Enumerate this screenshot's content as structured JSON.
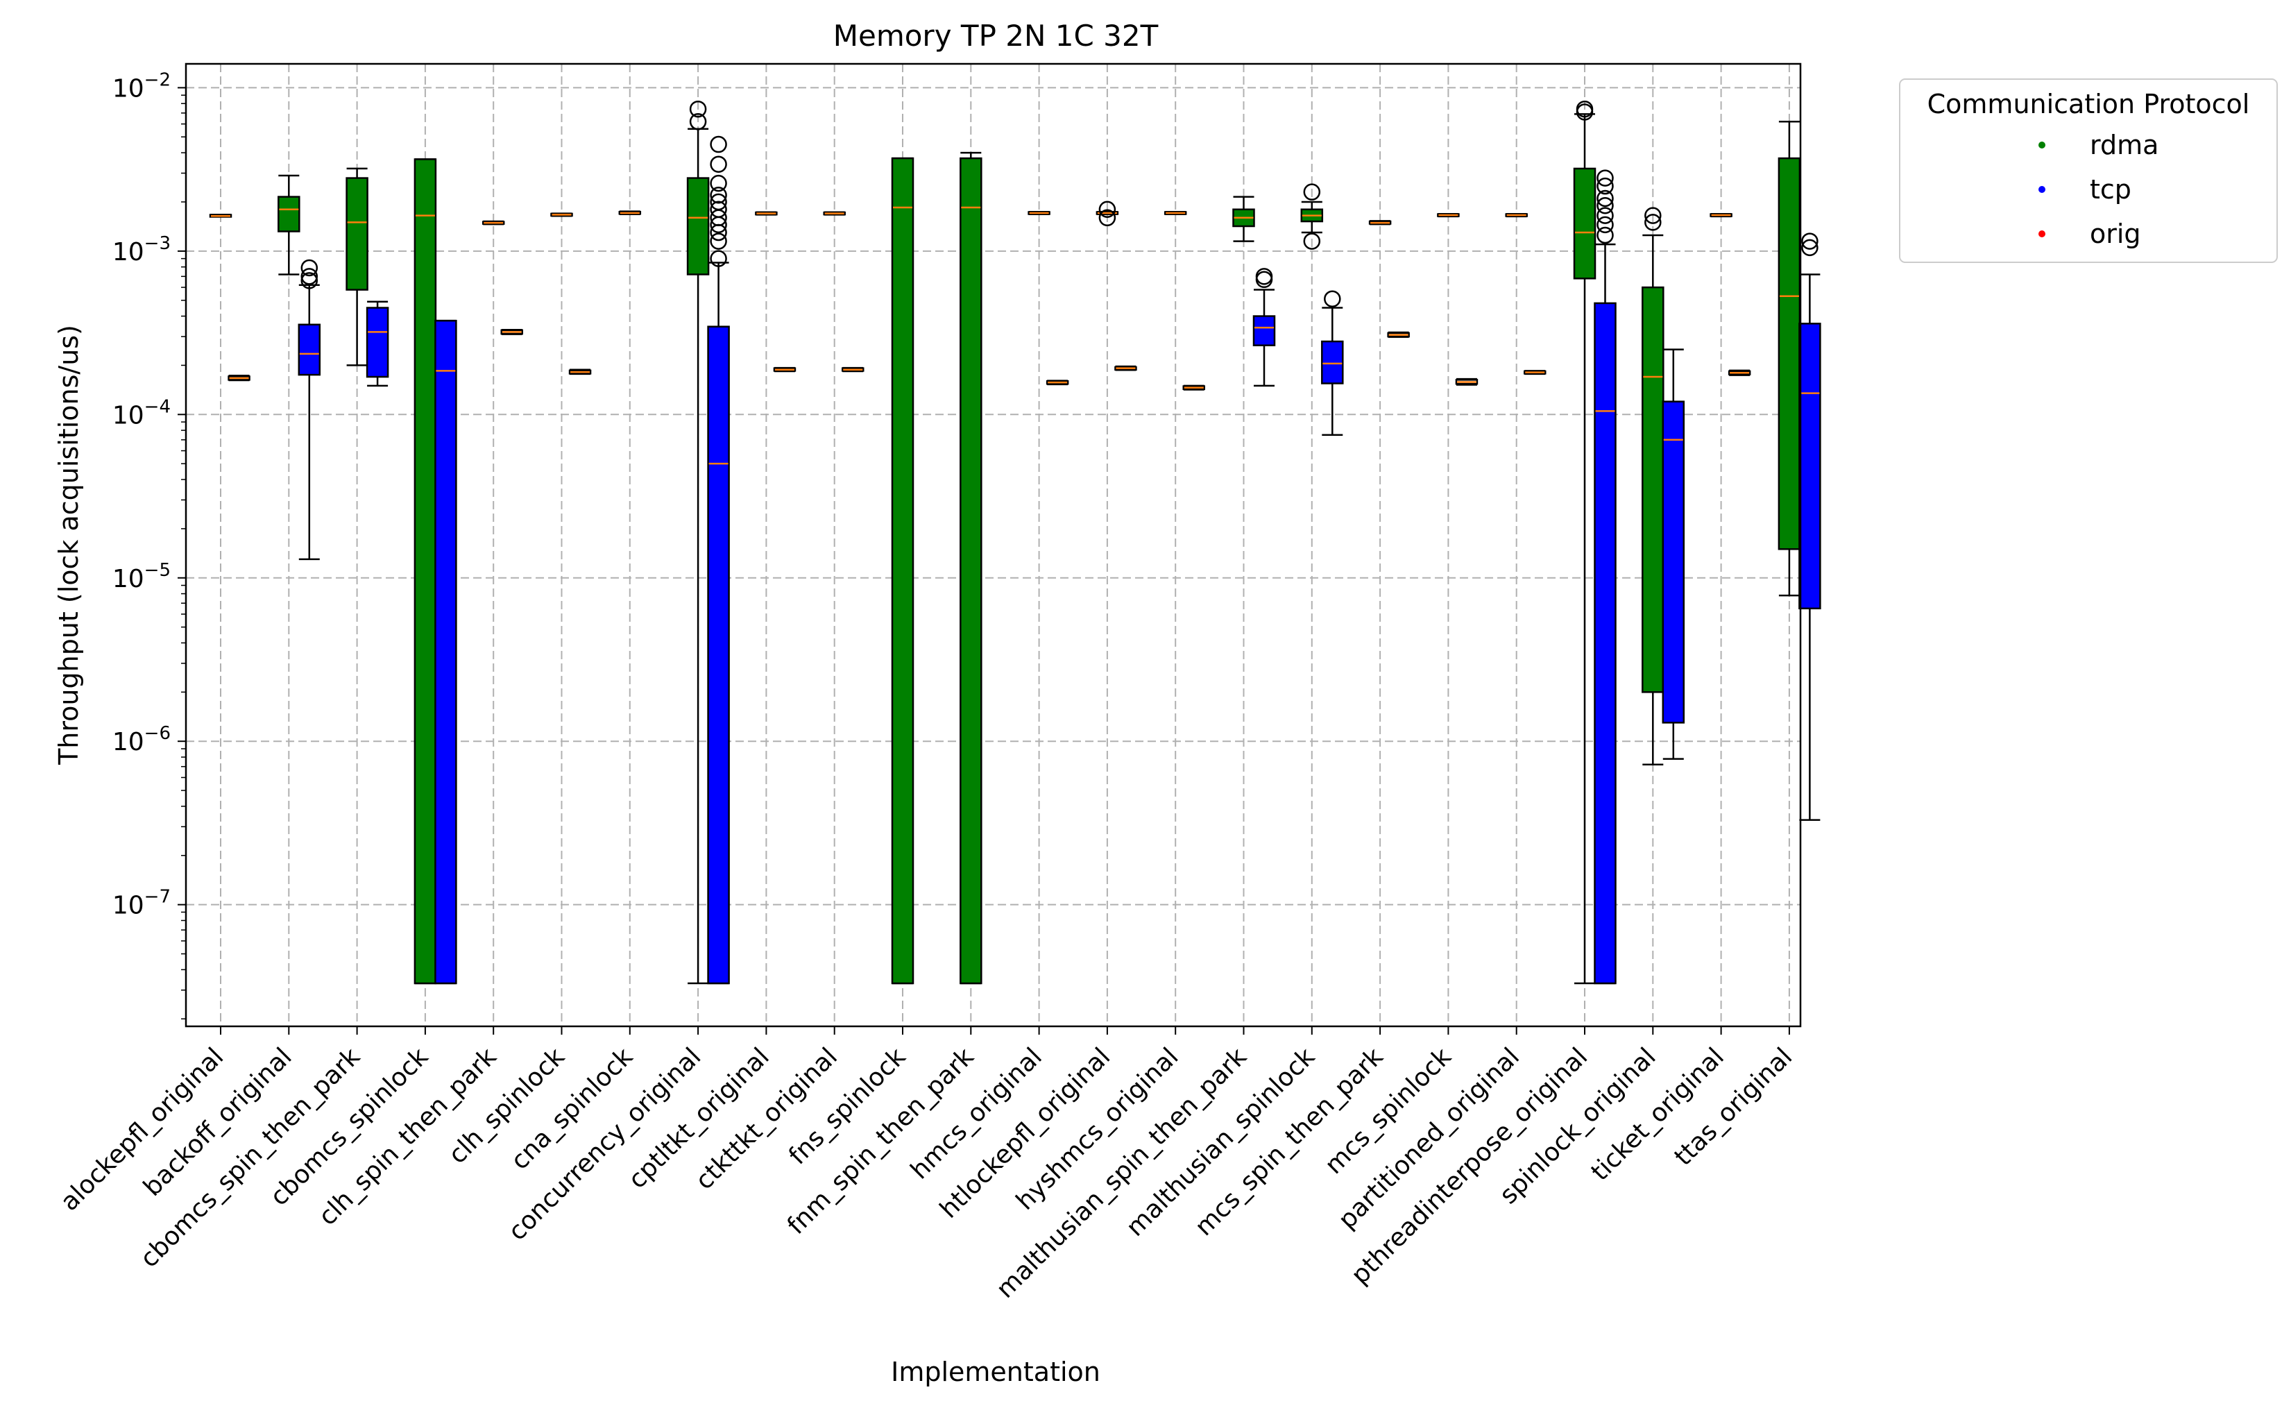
{
  "chart_data": {
    "type": "box",
    "title": "Memory TP 2N 1C 32T",
    "xlabel": "Implementation",
    "ylabel": "Throughput (lock acquisitions/us)",
    "yscale": "log",
    "ylim": [
      1.8e-08,
      0.014
    ],
    "yticks": [
      {
        "value": 1e-07,
        "base": "10",
        "exp": "−7"
      },
      {
        "value": 1e-06,
        "base": "10",
        "exp": "−6"
      },
      {
        "value": 1e-05,
        "base": "10",
        "exp": "−5"
      },
      {
        "value": 0.0001,
        "base": "10",
        "exp": "−4"
      },
      {
        "value": 0.001,
        "base": "10",
        "exp": "−3"
      },
      {
        "value": 0.01,
        "base": "10",
        "exp": "−2"
      }
    ],
    "grid": true,
    "legend": {
      "title": "Communication Protocol",
      "placement": "outside-right",
      "entries": [
        {
          "label": "rdma",
          "color": "#008000"
        },
        {
          "label": "tcp",
          "color": "#0000ff"
        },
        {
          "label": "orig",
          "color": "#ff0000"
        }
      ]
    },
    "colors": {
      "rdma": "#008000",
      "tcp": "#0000ff",
      "orig": "#ff0000",
      "median": "#ff7f0e"
    },
    "categories": [
      "alockepfl_original",
      "backoff_original",
      "cbomcs_spin_then_park",
      "cbomcs_spinlock",
      "clh_spin_then_park",
      "clh_spinlock",
      "cna_spinlock",
      "concurrency_original",
      "cptltkt_original",
      "ctkttkt_original",
      "fns_spinlock",
      "fnm_spin_then_park",
      "hmcs_original",
      "htlockepfl_original",
      "hyshmcs_original",
      "malthusian_spin_then_park",
      "malthusian_spinlock",
      "mcs_spin_then_park",
      "mcs_spinlock",
      "partitioned_original",
      "pthreadinterpose_original",
      "spinlock_original",
      "ticket_original",
      "ttas_original"
    ],
    "boxes": [
      {
        "category": "alockepfl_original",
        "series": "orig",
        "pos": 0,
        "whislo": 0.00163,
        "q1": 0.00163,
        "med": 0.00164,
        "q3": 0.00166,
        "whishi": 0.00167,
        "fliers": []
      },
      {
        "category": "alockepfl_original",
        "series": "orig",
        "pos": 0.27,
        "whislo": 0.000162,
        "q1": 0.000163,
        "med": 0.000167,
        "q3": 0.000171,
        "whishi": 0.000173,
        "fliers": []
      },
      {
        "category": "backoff_original",
        "series": "rdma",
        "pos": 0,
        "whislo": 0.00072,
        "q1": 0.00132,
        "med": 0.0018,
        "q3": 0.00215,
        "whishi": 0.0029,
        "fliers": []
      },
      {
        "category": "backoff_original",
        "series": "tcp",
        "pos": 0.3,
        "whislo": 1.3e-05,
        "q1": 0.000175,
        "med": 0.000235,
        "q3": 0.000355,
        "whishi": 0.00062,
        "fliers": [
          0.00066,
          0.0007,
          0.00079
        ]
      },
      {
        "category": "cbomcs_spin_then_park",
        "series": "rdma",
        "pos": 0,
        "whislo": 0.0002,
        "q1": 0.00058,
        "med": 0.0015,
        "q3": 0.0028,
        "whishi": 0.0032,
        "fliers": []
      },
      {
        "category": "cbomcs_spin_then_park",
        "series": "tcp",
        "pos": 0.3,
        "whislo": 0.00015,
        "q1": 0.00017,
        "med": 0.00032,
        "q3": 0.00045,
        "whishi": 0.00049,
        "fliers": []
      },
      {
        "category": "cbomcs_spinlock",
        "series": "rdma",
        "pos": 0,
        "whislo": 3.3e-08,
        "q1": 3.3e-08,
        "med": 0.00165,
        "q3": 0.00365,
        "whishi": 0.00365,
        "fliers": []
      },
      {
        "category": "cbomcs_spinlock",
        "series": "tcp",
        "pos": 0.3,
        "whislo": 3.3e-08,
        "q1": 3.3e-08,
        "med": 0.000185,
        "q3": 0.000375,
        "whishi": 0.000375,
        "fliers": []
      },
      {
        "category": "clh_spin_then_park",
        "series": "orig",
        "pos": 0,
        "whislo": 0.00146,
        "q1": 0.00147,
        "med": 0.00149,
        "q3": 0.00151,
        "whishi": 0.00152,
        "fliers": []
      },
      {
        "category": "clh_spin_then_park",
        "series": "orig",
        "pos": 0.27,
        "whislo": 0.00031,
        "q1": 0.000312,
        "med": 0.00032,
        "q3": 0.000328,
        "whishi": 0.00033,
        "fliers": []
      },
      {
        "category": "clh_spinlock",
        "series": "orig",
        "pos": 0,
        "whislo": 0.00164,
        "q1": 0.00165,
        "med": 0.00167,
        "q3": 0.00169,
        "whishi": 0.0017,
        "fliers": []
      },
      {
        "category": "clh_spinlock",
        "series": "orig",
        "pos": 0.27,
        "whislo": 0.000177,
        "q1": 0.000178,
        "med": 0.000182,
        "q3": 0.000186,
        "whishi": 0.000188,
        "fliers": []
      },
      {
        "category": "cna_spinlock",
        "series": "orig",
        "pos": 0,
        "whislo": 0.00168,
        "q1": 0.00169,
        "med": 0.00171,
        "q3": 0.00174,
        "whishi": 0.00175,
        "fliers": []
      },
      {
        "category": "concurrency_original",
        "series": "rdma",
        "pos": 0,
        "whislo": 3.3e-08,
        "q1": 0.00072,
        "med": 0.0016,
        "q3": 0.0028,
        "whishi": 0.0056,
        "fliers": [
          0.0062,
          0.0074
        ]
      },
      {
        "category": "concurrency_original",
        "series": "tcp",
        "pos": 0.3,
        "whislo": 3.3e-08,
        "q1": 3.3e-08,
        "med": 5e-05,
        "q3": 0.000345,
        "whishi": 0.00085,
        "fliers": [
          0.0009,
          0.00115,
          0.0013,
          0.00145,
          0.0016,
          0.0018,
          0.002,
          0.0022,
          0.0026,
          0.0034,
          0.0045
        ]
      },
      {
        "category": "cptltkt_original",
        "series": "orig",
        "pos": 0,
        "whislo": 0.00167,
        "q1": 0.00168,
        "med": 0.0017,
        "q3": 0.00172,
        "whishi": 0.00173,
        "fliers": []
      },
      {
        "category": "cptltkt_original",
        "series": "orig",
        "pos": 0.27,
        "whislo": 0.000184,
        "q1": 0.000185,
        "med": 0.000188,
        "q3": 0.000192,
        "whishi": 0.000193,
        "fliers": []
      },
      {
        "category": "ctkttkt_original",
        "series": "orig",
        "pos": 0,
        "whislo": 0.00167,
        "q1": 0.00168,
        "med": 0.0017,
        "q3": 0.00172,
        "whishi": 0.00173,
        "fliers": []
      },
      {
        "category": "ctkttkt_original",
        "series": "orig",
        "pos": 0.27,
        "whislo": 0.000184,
        "q1": 0.000185,
        "med": 0.000188,
        "q3": 0.000192,
        "whishi": 0.000193,
        "fliers": []
      },
      {
        "category": "fns_spinlock",
        "series": "rdma",
        "pos": 0,
        "whislo": 3.3e-08,
        "q1": 3.3e-08,
        "med": 0.00185,
        "q3": 0.0037,
        "whishi": 0.0037,
        "fliers": []
      },
      {
        "category": "fnm_spin_then_park",
        "series": "rdma",
        "pos": 0,
        "whislo": 3.3e-08,
        "q1": 3.3e-08,
        "med": 0.00185,
        "q3": 0.0037,
        "whishi": 0.004,
        "fliers": []
      },
      {
        "category": "hmcs_original",
        "series": "orig",
        "pos": 0,
        "whislo": 0.00168,
        "q1": 0.00169,
        "med": 0.00171,
        "q3": 0.00173,
        "whishi": 0.00174,
        "fliers": []
      },
      {
        "category": "hmcs_original",
        "series": "orig",
        "pos": 0.27,
        "whislo": 0.000153,
        "q1": 0.000154,
        "med": 0.000157,
        "q3": 0.00016,
        "whishi": 0.000161,
        "fliers": []
      },
      {
        "category": "htlockepfl_original",
        "series": "orig",
        "pos": 0,
        "whislo": 0.00168,
        "q1": 0.00169,
        "med": 0.00171,
        "q3": 0.00173,
        "whishi": 0.00174,
        "fliers": [
          0.0016,
          0.0018
        ]
      },
      {
        "category": "htlockepfl_original",
        "series": "orig",
        "pos": 0.27,
        "whislo": 0.000187,
        "q1": 0.000188,
        "med": 0.000192,
        "q3": 0.000195,
        "whishi": 0.000197,
        "fliers": []
      },
      {
        "category": "hyshmcs_original",
        "series": "orig",
        "pos": 0,
        "whislo": 0.00168,
        "q1": 0.00169,
        "med": 0.00171,
        "q3": 0.00173,
        "whishi": 0.00174,
        "fliers": []
      },
      {
        "category": "hyshmcs_original",
        "series": "orig",
        "pos": 0.27,
        "whislo": 0.000142,
        "q1": 0.000143,
        "med": 0.000146,
        "q3": 0.000149,
        "whishi": 0.00015,
        "fliers": []
      },
      {
        "category": "malthusian_spin_then_park",
        "series": "rdma",
        "pos": 0,
        "whislo": 0.00115,
        "q1": 0.00142,
        "med": 0.0016,
        "q3": 0.0018,
        "whishi": 0.00215,
        "fliers": []
      },
      {
        "category": "malthusian_spin_then_park",
        "series": "tcp",
        "pos": 0.3,
        "whislo": 0.00015,
        "q1": 0.000265,
        "med": 0.00034,
        "q3": 0.0004,
        "whishi": 0.00058,
        "fliers": [
          0.00067,
          0.0007
        ]
      },
      {
        "category": "malthusian_spinlock",
        "series": "rdma",
        "pos": 0,
        "whislo": 0.0013,
        "q1": 0.00152,
        "med": 0.00165,
        "q3": 0.0018,
        "whishi": 0.002,
        "fliers": [
          0.00115,
          0.0023
        ]
      },
      {
        "category": "malthusian_spinlock",
        "series": "tcp",
        "pos": 0.3,
        "whislo": 7.5e-05,
        "q1": 0.000155,
        "med": 0.000205,
        "q3": 0.00028,
        "whishi": 0.00045,
        "fliers": [
          0.00051
        ]
      },
      {
        "category": "mcs_spin_then_park",
        "series": "orig",
        "pos": 0,
        "whislo": 0.00146,
        "q1": 0.00147,
        "med": 0.00149,
        "q3": 0.00152,
        "whishi": 0.00153,
        "fliers": []
      },
      {
        "category": "mcs_spin_then_park",
        "series": "orig",
        "pos": 0.27,
        "whislo": 0.000298,
        "q1": 0.0003,
        "med": 0.000307,
        "q3": 0.000315,
        "whishi": 0.000318,
        "fliers": []
      },
      {
        "category": "mcs_spinlock",
        "series": "orig",
        "pos": 0,
        "whislo": 0.00163,
        "q1": 0.00164,
        "med": 0.00166,
        "q3": 0.00168,
        "whishi": 0.00169,
        "fliers": []
      },
      {
        "category": "mcs_spinlock",
        "series": "orig",
        "pos": 0.27,
        "whislo": 0.000152,
        "q1": 0.000154,
        "med": 0.000158,
        "q3": 0.000163,
        "whishi": 0.000165,
        "fliers": []
      },
      {
        "category": "partitioned_original",
        "series": "orig",
        "pos": 0,
        "whislo": 0.00163,
        "q1": 0.00164,
        "med": 0.00166,
        "q3": 0.00168,
        "whishi": 0.00169,
        "fliers": []
      },
      {
        "category": "partitioned_original",
        "series": "orig",
        "pos": 0.27,
        "whislo": 0.000177,
        "q1": 0.000178,
        "med": 0.000181,
        "q3": 0.000184,
        "whishi": 0.000185,
        "fliers": []
      },
      {
        "category": "pthreadinterpose_original",
        "series": "rdma",
        "pos": 0,
        "whislo": 3.3e-08,
        "q1": 0.00068,
        "med": 0.0013,
        "q3": 0.0032,
        "whishi": 0.0069,
        "fliers": [
          0.0071,
          0.0074
        ]
      },
      {
        "category": "pthreadinterpose_original",
        "series": "tcp",
        "pos": 0.3,
        "whislo": 3.3e-08,
        "q1": 3.3e-08,
        "med": 0.000105,
        "q3": 0.00048,
        "whishi": 0.0011,
        "fliers": [
          0.00125,
          0.00145,
          0.00165,
          0.0019,
          0.0021,
          0.0025,
          0.0028
        ]
      },
      {
        "category": "spinlock_original",
        "series": "rdma",
        "pos": 0,
        "whislo": 7.2e-07,
        "q1": 2e-06,
        "med": 0.00017,
        "q3": 0.0006,
        "whishi": 0.00125,
        "fliers": [
          0.0015,
          0.00165
        ]
      },
      {
        "category": "spinlock_original",
        "series": "tcp",
        "pos": 0.3,
        "whislo": 7.8e-07,
        "q1": 1.3e-06,
        "med": 7e-05,
        "q3": 0.00012,
        "whishi": 0.00025,
        "fliers": []
      },
      {
        "category": "ticket_original",
        "series": "orig",
        "pos": 0,
        "whislo": 0.00163,
        "q1": 0.00164,
        "med": 0.00166,
        "q3": 0.00168,
        "whishi": 0.00169,
        "fliers": []
      },
      {
        "category": "ticket_original",
        "series": "orig",
        "pos": 0.27,
        "whislo": 0.000174,
        "q1": 0.000176,
        "med": 0.00018,
        "q3": 0.000184,
        "whishi": 0.000186,
        "fliers": []
      },
      {
        "category": "ttas_original",
        "series": "rdma",
        "pos": 0,
        "whislo": 7.8e-06,
        "q1": 1.5e-05,
        "med": 0.00053,
        "q3": 0.0037,
        "whishi": 0.0062,
        "fliers": []
      },
      {
        "category": "ttas_original",
        "series": "tcp",
        "pos": 0.3,
        "whislo": 3.3e-07,
        "q1": 6.5e-06,
        "med": 0.000135,
        "q3": 0.00036,
        "whishi": 0.00072,
        "fliers": [
          0.00105,
          0.00115
        ]
      }
    ]
  }
}
